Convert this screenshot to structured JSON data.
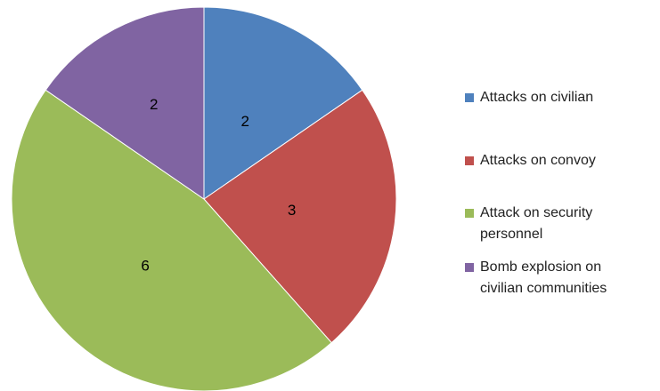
{
  "chart_data": {
    "type": "pie",
    "title": "",
    "categories": [
      "Attacks on civilian",
      "Attacks on convoy",
      "Attack on security personnel",
      "Bomb explosion on civilian communities"
    ],
    "values": [
      2,
      3,
      6,
      2
    ],
    "data_labels": [
      "2",
      "3",
      "6",
      "2"
    ],
    "colors": [
      "#4f81bd",
      "#c0504d",
      "#9bbb59",
      "#8064a2"
    ],
    "legend_position": "right",
    "legend_lines": [
      [
        "Attacks on civilian"
      ],
      [
        "Attacks on convoy"
      ],
      [
        "Attack on security",
        "personnel"
      ],
      [
        "Bomb explosion on",
        "civilian communities"
      ]
    ]
  }
}
